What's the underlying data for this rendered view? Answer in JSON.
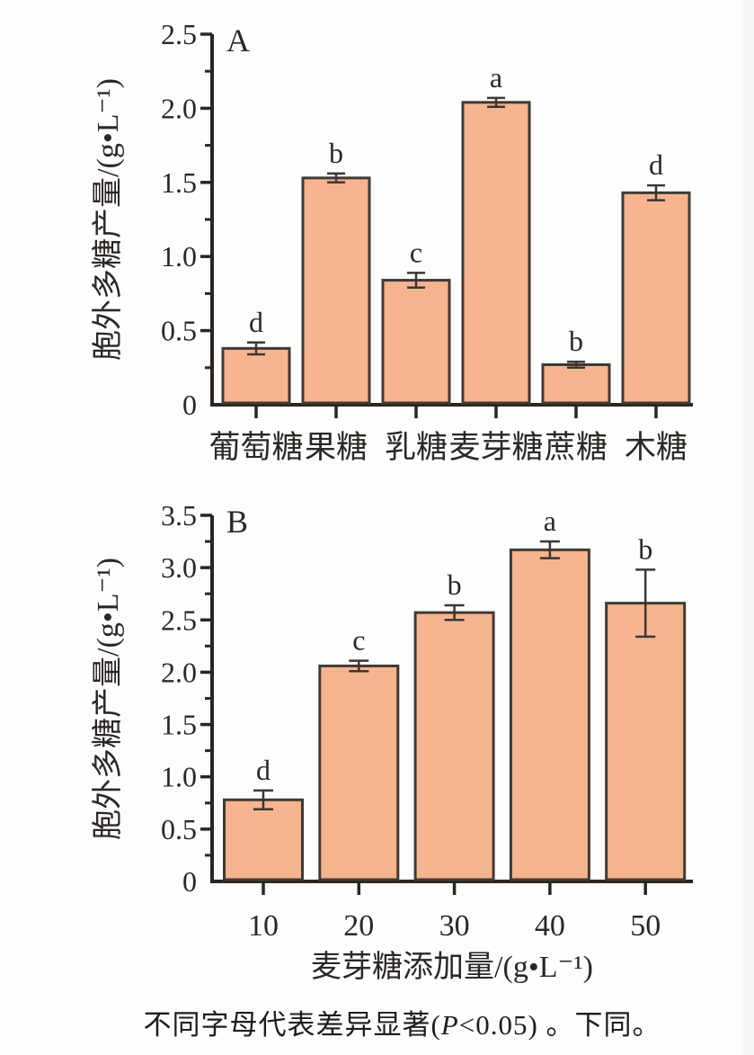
{
  "figure": {
    "caption": {
      "prefix": "不同字母代表差异显著(",
      "p_italic": "P",
      "suffix": "<0.05) 。下同。"
    },
    "bar_fill_color": "#f6b58e",
    "bar_border_color": "#403a34",
    "axis_color": "#2a2521",
    "text_color": "#2b2724"
  },
  "chart_data": [
    {
      "type": "bar",
      "panel_label": "A",
      "title": "",
      "categories": [
        "葡萄糖",
        "果糖",
        "乳糖",
        "麦芽糖",
        "蔗糖",
        "木糖"
      ],
      "values": [
        0.38,
        1.53,
        0.84,
        2.04,
        0.27,
        1.43
      ],
      "errors": [
        0.04,
        0.03,
        0.05,
        0.03,
        0.02,
        0.05
      ],
      "sig_letters": [
        "d",
        "b",
        "c",
        "a",
        "b",
        "d"
      ],
      "xlabel": "",
      "ylabel": "胞外多糖产量/(g•L⁻¹)",
      "ylim": [
        0,
        2.5
      ],
      "ytick_values": [
        0,
        0.5,
        1.0,
        1.5,
        2.0,
        2.5
      ],
      "ytick_labels": [
        "0",
        "0.5",
        "1.0",
        "1.5",
        "2.0",
        "2.5"
      ],
      "minor_tick_step": 0.25,
      "grid": false,
      "legend": "none"
    },
    {
      "type": "bar",
      "panel_label": "B",
      "title": "",
      "categories": [
        "10",
        "20",
        "30",
        "40",
        "50"
      ],
      "values": [
        0.78,
        2.06,
        2.57,
        3.17,
        2.66
      ],
      "errors": [
        0.09,
        0.05,
        0.07,
        0.08,
        0.32
      ],
      "sig_letters": [
        "d",
        "c",
        "b",
        "a",
        "b"
      ],
      "xlabel": "麦芽糖添加量/(g•L⁻¹)",
      "ylabel": "胞外多糖产量/(g•L⁻¹)",
      "ylim": [
        0,
        3.5
      ],
      "ytick_values": [
        0,
        0.5,
        1.0,
        1.5,
        2.0,
        2.5,
        3.0,
        3.5
      ],
      "ytick_labels": [
        "0",
        "0.5",
        "1.0",
        "1.5",
        "2.0",
        "2.5",
        "3.0",
        "3.5"
      ],
      "minor_tick_step": 0.25,
      "grid": false,
      "legend": "none"
    }
  ]
}
